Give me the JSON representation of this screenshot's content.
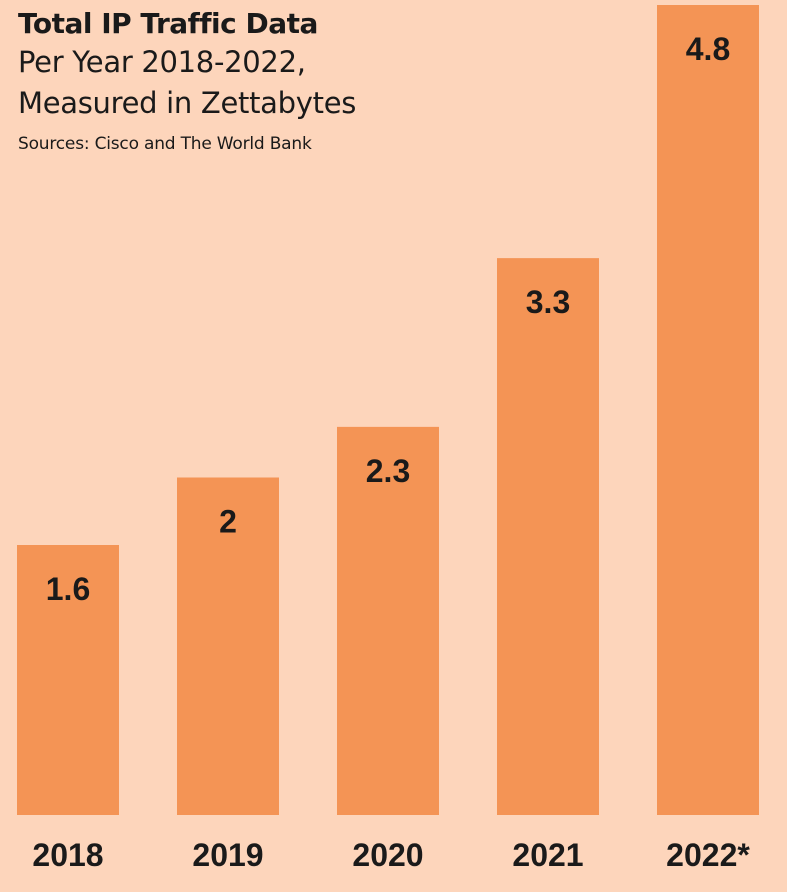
{
  "chart_data": {
    "type": "bar",
    "title": "Total IP Traffic Data",
    "subtitle_lines": [
      "Per Year 2018-2022,",
      "Measured in Zettabytes"
    ],
    "source": "Sources: Cisco and The World Bank",
    "categories": [
      "2018",
      "2019",
      "2020",
      "2021",
      "2022*"
    ],
    "values": [
      1.6,
      2,
      2.3,
      3.3,
      4.8
    ],
    "data_labels": [
      "1.6",
      "2",
      "2.3",
      "3.3",
      "4.8"
    ],
    "ylim": [
      0,
      4.8
    ],
    "grid": false,
    "bar_color": "#f49455",
    "background_color": "#fdd5bb"
  }
}
